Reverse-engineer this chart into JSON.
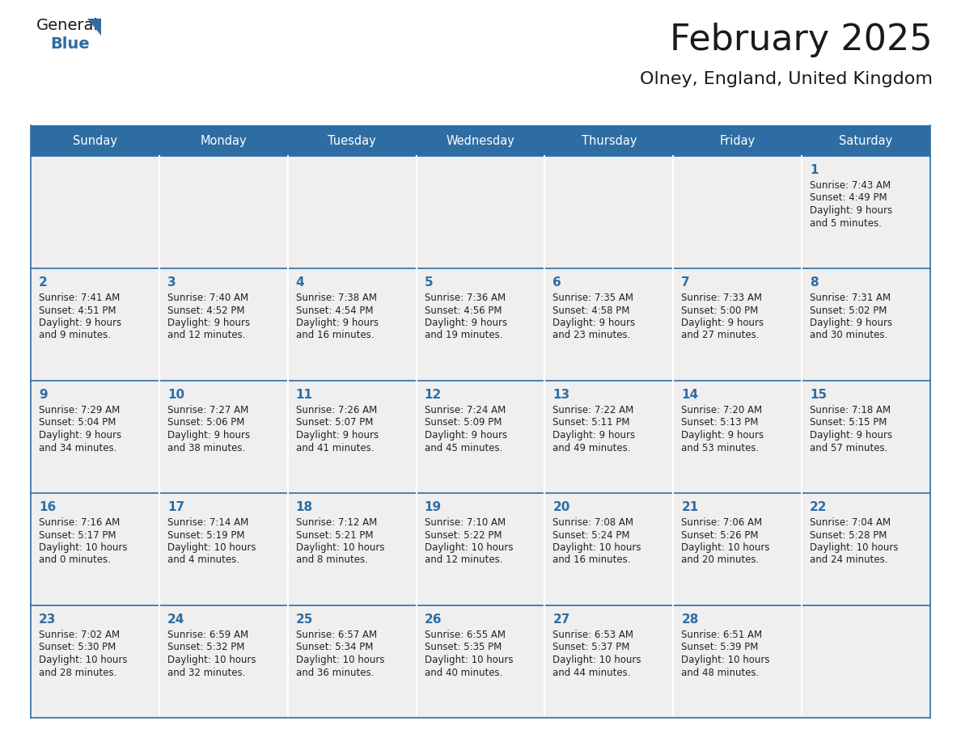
{
  "title": "February 2025",
  "subtitle": "Olney, England, United Kingdom",
  "header_bg": "#2E6DA4",
  "header_text_color": "#FFFFFF",
  "cell_bg": "#EFEFEF",
  "row_divider_color": "#2E6DA4",
  "col_divider_color": "#FFFFFF",
  "day_number_color": "#2E6DA4",
  "text_color": "#222222",
  "days_of_week": [
    "Sunday",
    "Monday",
    "Tuesday",
    "Wednesday",
    "Thursday",
    "Friday",
    "Saturday"
  ],
  "calendar_data": [
    [
      null,
      null,
      null,
      null,
      null,
      null,
      {
        "day": "1",
        "sunrise": "7:43 AM",
        "sunset": "4:49 PM",
        "daylight_h": "9 hours",
        "daylight_m": "and 5 minutes."
      }
    ],
    [
      {
        "day": "2",
        "sunrise": "7:41 AM",
        "sunset": "4:51 PM",
        "daylight_h": "9 hours",
        "daylight_m": "and 9 minutes."
      },
      {
        "day": "3",
        "sunrise": "7:40 AM",
        "sunset": "4:52 PM",
        "daylight_h": "9 hours",
        "daylight_m": "and 12 minutes."
      },
      {
        "day": "4",
        "sunrise": "7:38 AM",
        "sunset": "4:54 PM",
        "daylight_h": "9 hours",
        "daylight_m": "and 16 minutes."
      },
      {
        "day": "5",
        "sunrise": "7:36 AM",
        "sunset": "4:56 PM",
        "daylight_h": "9 hours",
        "daylight_m": "and 19 minutes."
      },
      {
        "day": "6",
        "sunrise": "7:35 AM",
        "sunset": "4:58 PM",
        "daylight_h": "9 hours",
        "daylight_m": "and 23 minutes."
      },
      {
        "day": "7",
        "sunrise": "7:33 AM",
        "sunset": "5:00 PM",
        "daylight_h": "9 hours",
        "daylight_m": "and 27 minutes."
      },
      {
        "day": "8",
        "sunrise": "7:31 AM",
        "sunset": "5:02 PM",
        "daylight_h": "9 hours",
        "daylight_m": "and 30 minutes."
      }
    ],
    [
      {
        "day": "9",
        "sunrise": "7:29 AM",
        "sunset": "5:04 PM",
        "daylight_h": "9 hours",
        "daylight_m": "and 34 minutes."
      },
      {
        "day": "10",
        "sunrise": "7:27 AM",
        "sunset": "5:06 PM",
        "daylight_h": "9 hours",
        "daylight_m": "and 38 minutes."
      },
      {
        "day": "11",
        "sunrise": "7:26 AM",
        "sunset": "5:07 PM",
        "daylight_h": "9 hours",
        "daylight_m": "and 41 minutes."
      },
      {
        "day": "12",
        "sunrise": "7:24 AM",
        "sunset": "5:09 PM",
        "daylight_h": "9 hours",
        "daylight_m": "and 45 minutes."
      },
      {
        "day": "13",
        "sunrise": "7:22 AM",
        "sunset": "5:11 PM",
        "daylight_h": "9 hours",
        "daylight_m": "and 49 minutes."
      },
      {
        "day": "14",
        "sunrise": "7:20 AM",
        "sunset": "5:13 PM",
        "daylight_h": "9 hours",
        "daylight_m": "and 53 minutes."
      },
      {
        "day": "15",
        "sunrise": "7:18 AM",
        "sunset": "5:15 PM",
        "daylight_h": "9 hours",
        "daylight_m": "and 57 minutes."
      }
    ],
    [
      {
        "day": "16",
        "sunrise": "7:16 AM",
        "sunset": "5:17 PM",
        "daylight_h": "10 hours",
        "daylight_m": "and 0 minutes."
      },
      {
        "day": "17",
        "sunrise": "7:14 AM",
        "sunset": "5:19 PM",
        "daylight_h": "10 hours",
        "daylight_m": "and 4 minutes."
      },
      {
        "day": "18",
        "sunrise": "7:12 AM",
        "sunset": "5:21 PM",
        "daylight_h": "10 hours",
        "daylight_m": "and 8 minutes."
      },
      {
        "day": "19",
        "sunrise": "7:10 AM",
        "sunset": "5:22 PM",
        "daylight_h": "10 hours",
        "daylight_m": "and 12 minutes."
      },
      {
        "day": "20",
        "sunrise": "7:08 AM",
        "sunset": "5:24 PM",
        "daylight_h": "10 hours",
        "daylight_m": "and 16 minutes."
      },
      {
        "day": "21",
        "sunrise": "7:06 AM",
        "sunset": "5:26 PM",
        "daylight_h": "10 hours",
        "daylight_m": "and 20 minutes."
      },
      {
        "day": "22",
        "sunrise": "7:04 AM",
        "sunset": "5:28 PM",
        "daylight_h": "10 hours",
        "daylight_m": "and 24 minutes."
      }
    ],
    [
      {
        "day": "23",
        "sunrise": "7:02 AM",
        "sunset": "5:30 PM",
        "daylight_h": "10 hours",
        "daylight_m": "and 28 minutes."
      },
      {
        "day": "24",
        "sunrise": "6:59 AM",
        "sunset": "5:32 PM",
        "daylight_h": "10 hours",
        "daylight_m": "and 32 minutes."
      },
      {
        "day": "25",
        "sunrise": "6:57 AM",
        "sunset": "5:34 PM",
        "daylight_h": "10 hours",
        "daylight_m": "and 36 minutes."
      },
      {
        "day": "26",
        "sunrise": "6:55 AM",
        "sunset": "5:35 PM",
        "daylight_h": "10 hours",
        "daylight_m": "and 40 minutes."
      },
      {
        "day": "27",
        "sunrise": "6:53 AM",
        "sunset": "5:37 PM",
        "daylight_h": "10 hours",
        "daylight_m": "and 44 minutes."
      },
      {
        "day": "28",
        "sunrise": "6:51 AM",
        "sunset": "5:39 PM",
        "daylight_h": "10 hours",
        "daylight_m": "and 48 minutes."
      },
      null
    ]
  ],
  "logo_text_general": "General",
  "logo_text_blue": "Blue",
  "logo_triangle_color": "#2E6DA4",
  "logo_general_color": "#1a1a1a"
}
